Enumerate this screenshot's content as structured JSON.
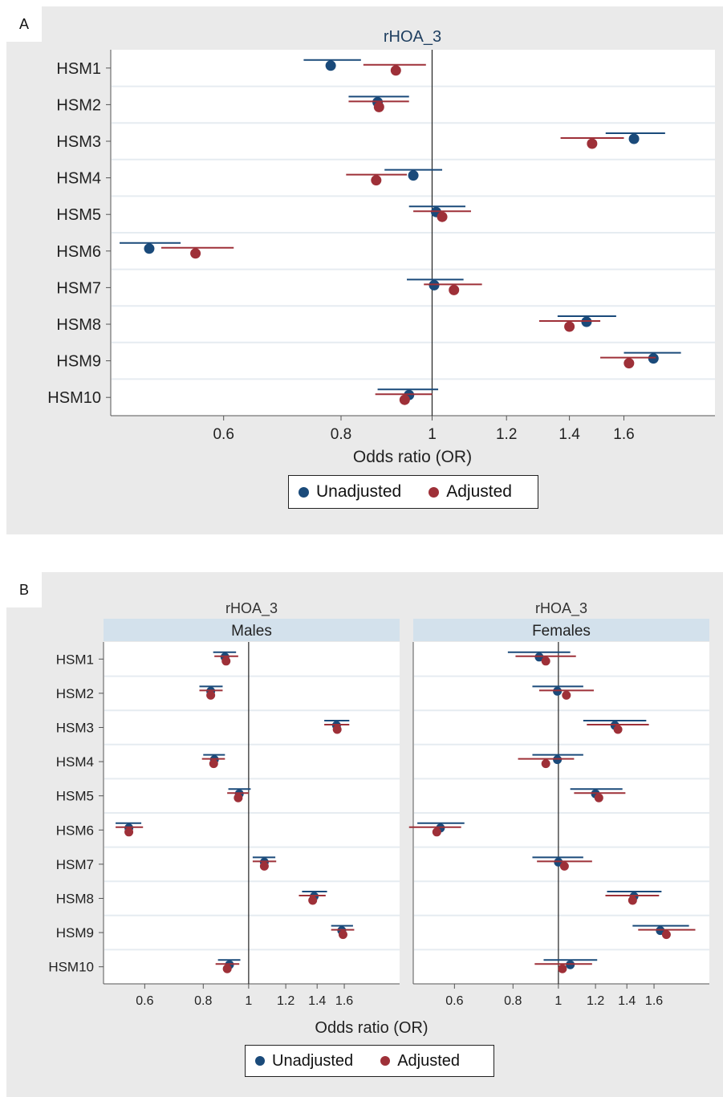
{
  "chart_data": [
    {
      "panel_label": "A",
      "type": "forest",
      "title": "rHOA_3",
      "xlabel": "Odds ratio (OR)",
      "x_scale": "log",
      "x_ticks": [
        0.6,
        0.8,
        1,
        1.2,
        1.4,
        1.6
      ],
      "x_tick_labels": [
        "0.6",
        "0.8",
        "1",
        "1.2",
        "1.4",
        "1.6"
      ],
      "reference_line": 1,
      "categories": [
        "HSM1",
        "HSM2",
        "HSM3",
        "HSM4",
        "HSM5",
        "HSM6",
        "HSM7",
        "HSM8",
        "HSM9",
        "HSM10"
      ],
      "series": [
        {
          "name": "Unadjusted",
          "color": "#1a4a7a",
          "or": [
            0.78,
            0.875,
            1.64,
            0.955,
            1.01,
            0.5,
            1.005,
            1.46,
            1.72,
            0.945
          ],
          "lower": [
            0.73,
            0.815,
            1.53,
            0.89,
            0.945,
            0.465,
            0.94,
            1.36,
            1.6,
            0.875
          ],
          "upper": [
            0.84,
            0.945,
            1.77,
            1.025,
            1.085,
            0.54,
            1.08,
            1.57,
            1.84,
            1.015
          ]
        },
        {
          "name": "Adjusted",
          "color": "#9e3038",
          "or": [
            0.915,
            0.878,
            1.48,
            0.872,
            1.025,
            0.56,
            1.055,
            1.4,
            1.62,
            0.935
          ],
          "lower": [
            0.845,
            0.815,
            1.37,
            0.81,
            0.955,
            0.515,
            0.98,
            1.3,
            1.51,
            0.87
          ],
          "upper": [
            0.985,
            0.945,
            1.6,
            0.94,
            1.1,
            0.615,
            1.13,
            1.51,
            1.73,
            1.0
          ]
        }
      ],
      "legend": [
        "Unadjusted",
        "Adjusted"
      ],
      "legend_position": "bottom"
    },
    {
      "panel_label": "B",
      "type": "forest",
      "title": "rHOA_3",
      "subplots": [
        "Males",
        "Females"
      ],
      "xlabel": "Odds ratio (OR)",
      "x_scale": "log",
      "x_ticks": [
        0.6,
        0.8,
        1,
        1.2,
        1.4,
        1.6
      ],
      "x_tick_labels": [
        "0.6",
        "0.8",
        "1",
        "1.2",
        "1.4",
        "1.6"
      ],
      "reference_line": 1,
      "categories": [
        "HSM1",
        "HSM2",
        "HSM3",
        "HSM4",
        "HSM5",
        "HSM6",
        "HSM7",
        "HSM8",
        "HSM9",
        "HSM10"
      ],
      "males": {
        "unadjusted": {
          "or": [
            0.89,
            0.83,
            1.54,
            0.845,
            0.955,
            0.555,
            1.08,
            1.38,
            1.58,
            0.91
          ],
          "lower": [
            0.84,
            0.785,
            1.45,
            0.8,
            0.905,
            0.52,
            1.02,
            1.3,
            1.5,
            0.86
          ],
          "upper": [
            0.94,
            0.88,
            1.64,
            0.89,
            1.01,
            0.59,
            1.14,
            1.47,
            1.67,
            0.96
          ]
        },
        "adjusted": {
          "or": [
            0.895,
            0.83,
            1.545,
            0.842,
            0.95,
            0.555,
            1.08,
            1.37,
            1.59,
            0.9
          ],
          "lower": [
            0.845,
            0.785,
            1.45,
            0.795,
            0.9,
            0.52,
            1.02,
            1.28,
            1.5,
            0.85
          ],
          "upper": [
            0.95,
            0.88,
            1.64,
            0.89,
            1.0,
            0.595,
            1.145,
            1.46,
            1.68,
            0.955
          ]
        }
      },
      "females": {
        "unadjusted": {
          "or": [
            0.91,
            0.995,
            1.32,
            0.995,
            1.2,
            0.56,
            1.0,
            1.45,
            1.65,
            1.06
          ],
          "lower": [
            0.78,
            0.88,
            1.13,
            0.88,
            1.06,
            0.5,
            0.88,
            1.27,
            1.44,
            0.93
          ],
          "upper": [
            1.06,
            1.13,
            1.54,
            1.13,
            1.37,
            0.63,
            1.13,
            1.66,
            1.9,
            1.21
          ]
        },
        "adjusted": {
          "or": [
            0.94,
            1.04,
            1.34,
            0.94,
            1.22,
            0.55,
            1.03,
            1.44,
            1.7,
            1.02
          ],
          "lower": [
            0.81,
            0.91,
            1.15,
            0.82,
            1.08,
            0.48,
            0.9,
            1.26,
            1.48,
            0.89
          ],
          "upper": [
            1.09,
            1.19,
            1.56,
            1.08,
            1.39,
            0.62,
            1.18,
            1.64,
            1.96,
            1.18
          ]
        }
      },
      "series_names": [
        "Unadjusted",
        "Adjusted"
      ],
      "legend": [
        "Unadjusted",
        "Adjusted"
      ],
      "legend_position": "bottom"
    }
  ],
  "colors": {
    "unadjusted": "#1a4a7a",
    "adjusted": "#9e3038",
    "strip": "#d3e1ec",
    "plot_bg": "#ffffff",
    "panel_bg": "#eaeaea"
  },
  "labels": {
    "panel_a": "A",
    "panel_b": "B",
    "legend_unadjusted": "Unadjusted",
    "legend_adjusted": "Adjusted"
  }
}
